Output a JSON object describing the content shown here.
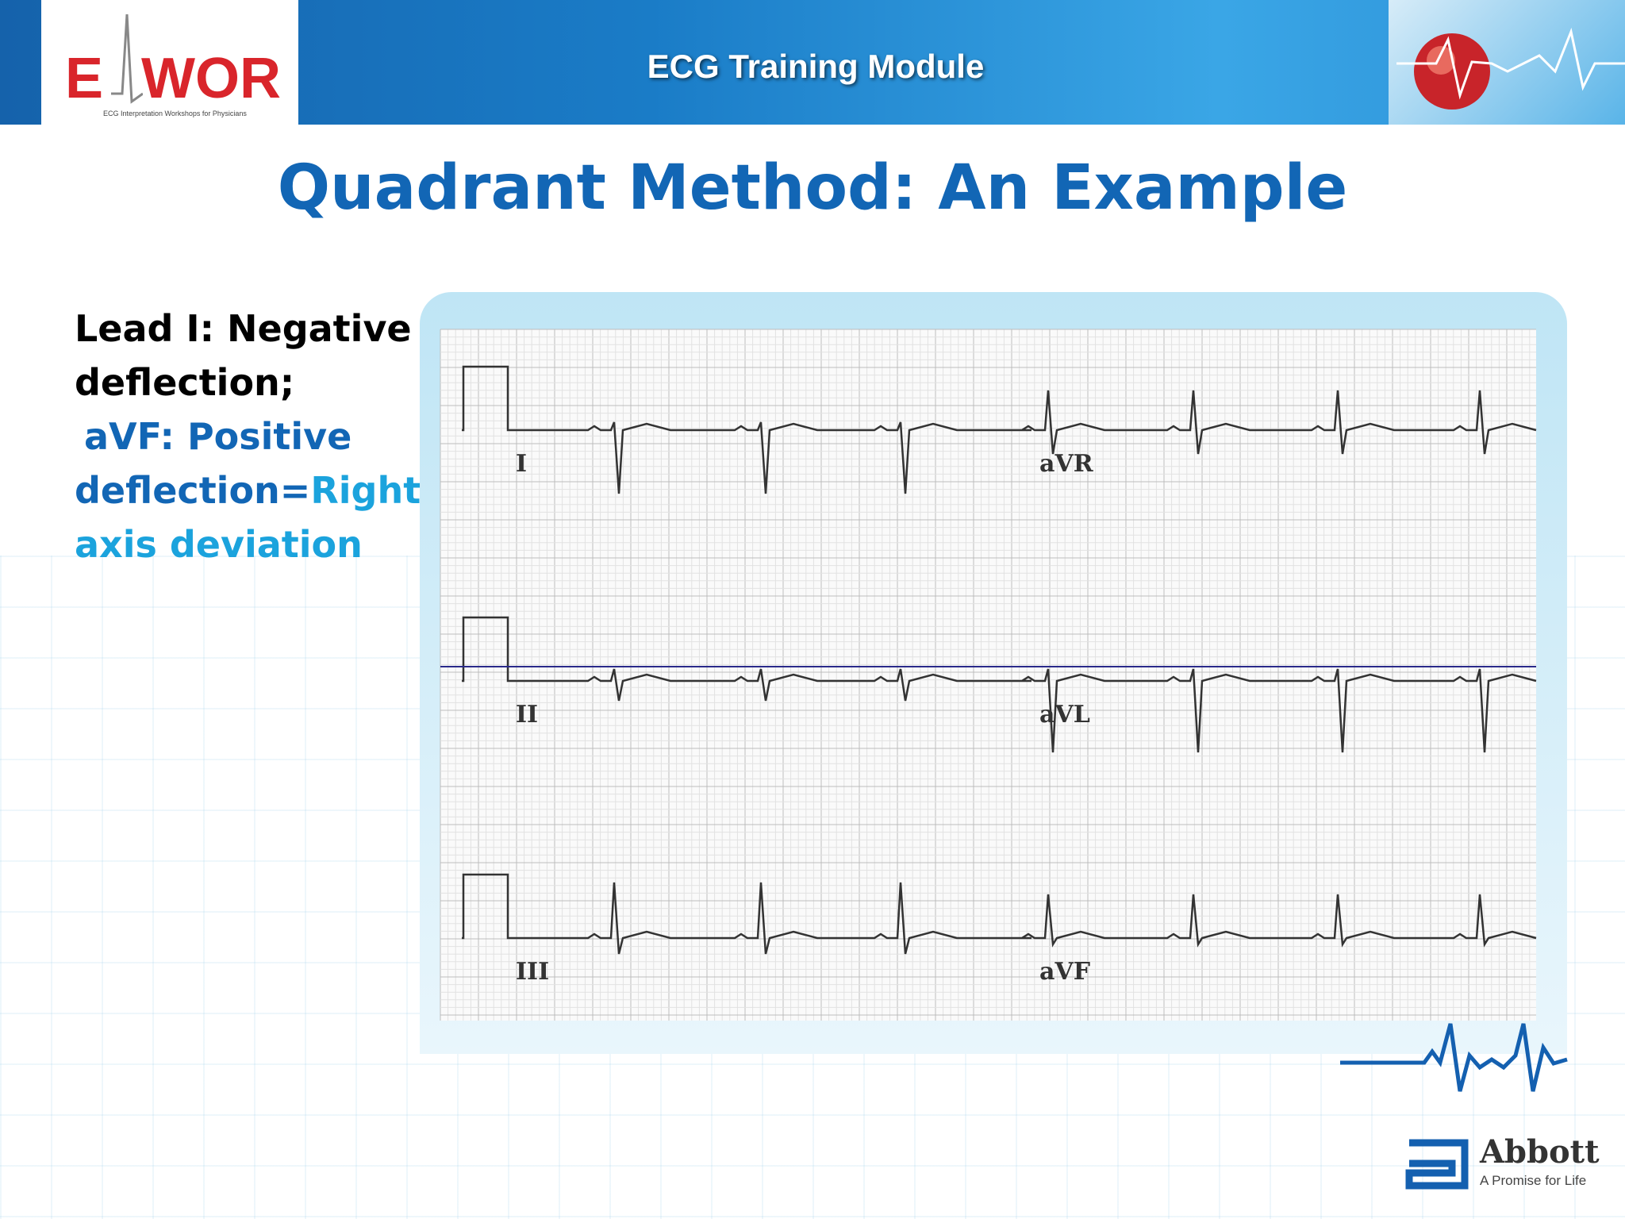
{
  "header": {
    "logo": {
      "left": "E",
      "right": "WOR",
      "tagline": "ECG Interpretation Workshops for Physicians"
    },
    "title": "ECG Training Module"
  },
  "slide": {
    "title": "Quadrant Method: An Example",
    "text": {
      "line1": "Lead I: Negative deflection;",
      "line2": "aVF: Positive deflection=",
      "line3": "Right axis deviation"
    }
  },
  "ecg": {
    "leads": [
      "I",
      "aVR",
      "II",
      "aVL",
      "III",
      "aVF"
    ]
  },
  "footer": {
    "brand": "Abbott",
    "tagline": "A Promise for Life"
  }
}
